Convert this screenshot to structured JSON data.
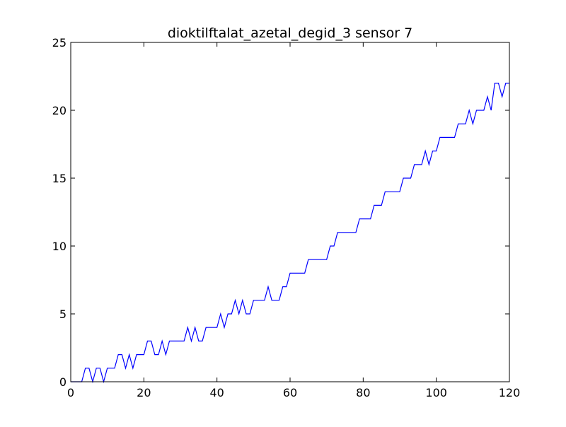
{
  "chart_data": {
    "type": "line",
    "title": "dioktilftalat_azetal_degid_3 sensor 7",
    "xlabel": "",
    "ylabel": "",
    "xlim": [
      0,
      120
    ],
    "ylim": [
      0,
      25
    ],
    "xticks": [
      0,
      20,
      40,
      60,
      80,
      100,
      120
    ],
    "yticks": [
      0,
      5,
      10,
      15,
      20,
      25
    ],
    "grid": false,
    "legend": "none",
    "series_color": "#0000ff",
    "series": [
      {
        "x": [
          0,
          1,
          2,
          3,
          4,
          5,
          6,
          7,
          8,
          9,
          10,
          11,
          12,
          13,
          14,
          15,
          16,
          17,
          18,
          19,
          20,
          21,
          22,
          23,
          24,
          25,
          26,
          27,
          28,
          29,
          30,
          31,
          32,
          33,
          34,
          35,
          36,
          37,
          38,
          39,
          40,
          41,
          42,
          43,
          44,
          45,
          46,
          47,
          48,
          49,
          50,
          51,
          52,
          53,
          54,
          55,
          56,
          57,
          58,
          59,
          60,
          61,
          62,
          63,
          64,
          65,
          66,
          67,
          68,
          69,
          70,
          71,
          72,
          73,
          74,
          75,
          76,
          77,
          78,
          79,
          80,
          81,
          82,
          83,
          84,
          85,
          86,
          87,
          88,
          89,
          90,
          91,
          92,
          93,
          94,
          95,
          96,
          97,
          98,
          99,
          100,
          101,
          102,
          103,
          104,
          105,
          106,
          107,
          108,
          109,
          110,
          111,
          112,
          113,
          114,
          115,
          116,
          117,
          118,
          119,
          120
        ],
        "values": [
          0,
          0,
          0,
          0,
          1,
          1,
          0,
          1,
          1,
          0,
          1,
          1,
          1,
          2,
          2,
          1,
          2,
          1,
          2,
          2,
          2,
          3,
          3,
          2,
          2,
          3,
          2,
          3,
          3,
          3,
          3,
          3,
          4,
          3,
          4,
          3,
          3,
          4,
          4,
          4,
          4,
          5,
          4,
          5,
          5,
          6,
          5,
          6,
          5,
          5,
          6,
          6,
          6,
          6,
          7,
          6,
          6,
          6,
          7,
          7,
          8,
          8,
          8,
          8,
          8,
          9,
          9,
          9,
          9,
          9,
          9,
          10,
          10,
          11,
          11,
          11,
          11,
          11,
          11,
          12,
          12,
          12,
          12,
          13,
          13,
          13,
          14,
          14,
          14,
          14,
          14,
          15,
          15,
          15,
          16,
          16,
          16,
          17,
          16,
          17,
          17,
          18,
          18,
          18,
          18,
          18,
          19,
          19,
          19,
          20,
          19,
          20,
          20,
          20,
          21,
          20,
          22,
          22,
          21,
          22,
          22
        ]
      }
    ]
  }
}
